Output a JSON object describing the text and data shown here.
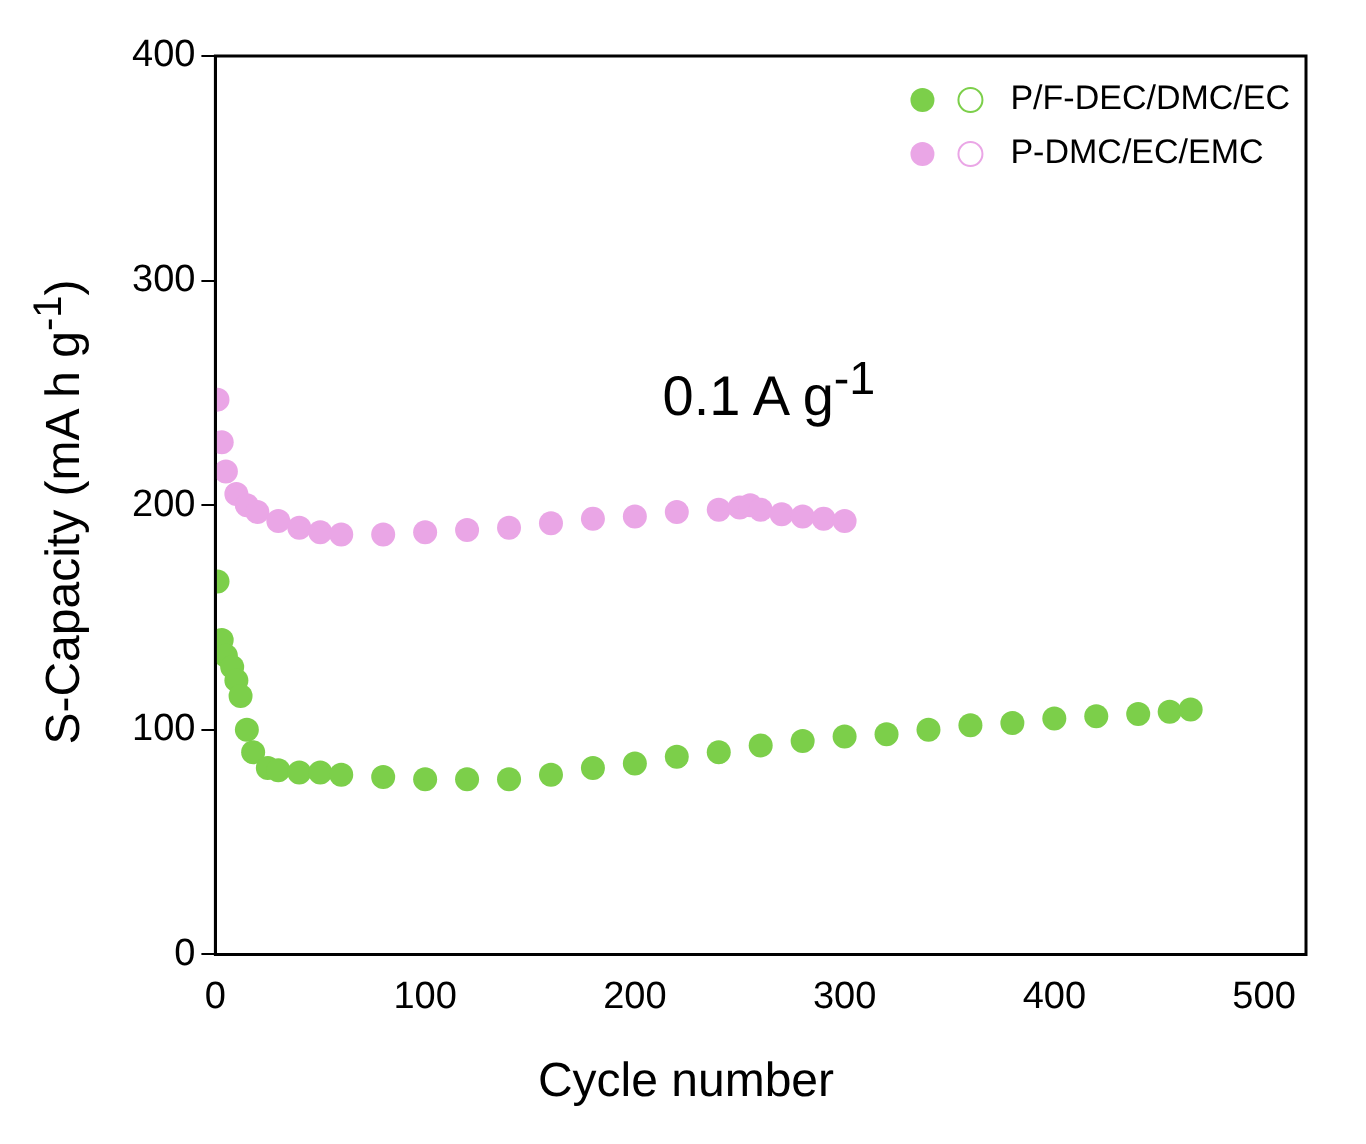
{
  "chart_data": {
    "type": "scatter",
    "xlabel": "Cycle number",
    "ylabel": "S-Capacity (mA h g$^{-1}$)",
    "annotations": [
      "0.1 A g$^{-1}$"
    ],
    "xlim": [
      0,
      520
    ],
    "xticks": [
      0,
      100,
      200,
      300,
      400,
      500
    ],
    "ylim": [
      0,
      400
    ],
    "yticks": [
      0,
      100,
      200,
      300,
      400
    ],
    "grid": false,
    "legend": "top right",
    "marker": "circle",
    "series": [
      {
        "name": "P/F-DEC/DMC/EC",
        "color": "#7ccf4a",
        "x": [
          1,
          3,
          5,
          8,
          10,
          12,
          15,
          18,
          25,
          30,
          40,
          50,
          60,
          80,
          100,
          120,
          140,
          160,
          180,
          200,
          220,
          240,
          260,
          280,
          300,
          320,
          340,
          360,
          380,
          400,
          420,
          440,
          455,
          465
        ],
        "values": [
          166,
          140,
          133,
          128,
          122,
          115,
          100,
          90,
          83,
          82,
          81,
          81,
          80,
          79,
          78,
          78,
          78,
          80,
          83,
          85,
          88,
          90,
          93,
          95,
          97,
          98,
          100,
          102,
          103,
          105,
          106,
          107,
          108,
          109
        ]
      },
      {
        "name": "P-DMC/EC/EMC",
        "color": "#eaa6e6",
        "x": [
          1,
          3,
          5,
          10,
          15,
          20,
          30,
          40,
          50,
          60,
          80,
          100,
          120,
          140,
          160,
          180,
          200,
          220,
          240,
          250,
          255,
          260,
          270,
          280,
          290,
          300
        ],
        "values": [
          247,
          228,
          215,
          205,
          200,
          197,
          193,
          190,
          188,
          187,
          187,
          188,
          189,
          190,
          192,
          194,
          195,
          197,
          198,
          199,
          200,
          198,
          196,
          195,
          194,
          193
        ]
      }
    ]
  }
}
